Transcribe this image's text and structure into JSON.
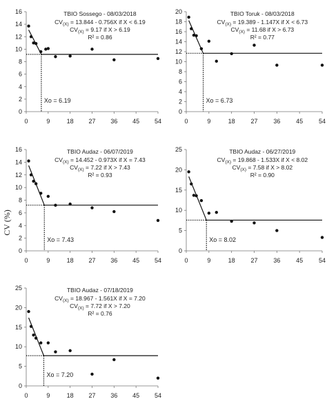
{
  "ylabel": "CV (%)",
  "chart_data": [
    {
      "type": "scatter",
      "title": "TBIO Sossego - 08/03/2018",
      "eq1": "CV(X) = 13.844 - 0.756X if X < 6.19",
      "eq2": "CV(X) = 9.17 if X > 6.19",
      "r2": "R² = 0.86",
      "xo_label": "Xo = 6.19",
      "xo": 6.19,
      "plateau": 9.17,
      "intercept": 13.844,
      "slope": -0.756,
      "ylim": [
        0,
        16
      ],
      "yticks": [
        0,
        2,
        4,
        6,
        8,
        10,
        12,
        14,
        16
      ],
      "xlim": [
        0,
        54
      ],
      "xticks": [
        0,
        9,
        18,
        27,
        36,
        45,
        54
      ],
      "points": [
        [
          1,
          13.7
        ],
        [
          2,
          12.0
        ],
        [
          3,
          11.0
        ],
        [
          4,
          10.9
        ],
        [
          6,
          9.6
        ],
        [
          8,
          10.0
        ],
        [
          9,
          10.1
        ],
        [
          12,
          8.8
        ],
        [
          18,
          8.9
        ],
        [
          27,
          10.0
        ],
        [
          36,
          8.3
        ],
        [
          54,
          8.5
        ]
      ]
    },
    {
      "type": "scatter",
      "title": "TBIO Toruk - 08/03/2018",
      "eq1": "CV(X) = 19.389 - 1.147X if X < 6.73",
      "eq2": "CV(X) = 11.68 if X > 6.73",
      "r2": "R² = 0.77",
      "xo_label": "Xo = 6.73",
      "xo": 6.73,
      "plateau": 11.68,
      "intercept": 19.389,
      "slope": -1.147,
      "ylim": [
        0,
        20
      ],
      "yticks": [
        0,
        2,
        4,
        6,
        8,
        10,
        12,
        14,
        16,
        18,
        20
      ],
      "xlim": [
        0,
        54
      ],
      "xticks": [
        0,
        9,
        18,
        27,
        36,
        45,
        54
      ],
      "points": [
        [
          1,
          18.9
        ],
        [
          2,
          16.6
        ],
        [
          3,
          15.3
        ],
        [
          4,
          15.2
        ],
        [
          6,
          12.6
        ],
        [
          9,
          14.1
        ],
        [
          12,
          10.1
        ],
        [
          18,
          11.6
        ],
        [
          27,
          13.3
        ],
        [
          36,
          9.3
        ],
        [
          54,
          9.3
        ]
      ]
    },
    {
      "type": "scatter",
      "title": "TBIO Audaz - 06/07/2019",
      "eq1": "CV(X) = 14.452 - 0.973X if X = 7.43",
      "eq2": "CV(X) = 7.22 if X > 7.43",
      "r2": "R² = 0.93",
      "xo_label": "Xo = 7.43",
      "xo": 7.43,
      "plateau": 7.22,
      "intercept": 14.452,
      "slope": -0.973,
      "ylim": [
        0,
        16
      ],
      "yticks": [
        0,
        2,
        4,
        6,
        8,
        10,
        12,
        14,
        16
      ],
      "xlim": [
        0,
        54
      ],
      "xticks": [
        0,
        9,
        18,
        27,
        36,
        45,
        54
      ],
      "points": [
        [
          1,
          14.2
        ],
        [
          2,
          12.0
        ],
        [
          3,
          11.0
        ],
        [
          4,
          10.6
        ],
        [
          6,
          9.1
        ],
        [
          9,
          8.6
        ],
        [
          12,
          7.2
        ],
        [
          18,
          7.4
        ],
        [
          27,
          6.8
        ],
        [
          36,
          6.2
        ],
        [
          54,
          4.8
        ]
      ]
    },
    {
      "type": "scatter",
      "title": "TBIO Audaz - 06/27/2019",
      "eq1": "CV(X) = 19.868 - 1.533X if X < 8.02",
      "eq2": "CV(X) = 7.58 if X > 8.02",
      "r2": "R² = 0.90",
      "xo_label": "Xo = 8.02",
      "xo": 8.02,
      "plateau": 7.58,
      "intercept": 19.868,
      "slope": -1.533,
      "ylim": [
        0,
        25
      ],
      "yticks": [
        0,
        5,
        10,
        15,
        20,
        25
      ],
      "xlim": [
        0,
        54
      ],
      "xticks": [
        0,
        9,
        18,
        27,
        36,
        45,
        54
      ],
      "points": [
        [
          1,
          19.5
        ],
        [
          2,
          16.5
        ],
        [
          3,
          13.7
        ],
        [
          4,
          13.6
        ],
        [
          6,
          12.4
        ],
        [
          9,
          9.3
        ],
        [
          12,
          9.5
        ],
        [
          18,
          7.3
        ],
        [
          27,
          6.9
        ],
        [
          36,
          5.0
        ],
        [
          54,
          3.3
        ]
      ]
    },
    {
      "type": "scatter",
      "title": "TBIO Audaz - 07/18/2019",
      "eq1": "CV(X) = 18.967 - 1.561X if X = 7.20",
      "eq2": "CV(X) = 7.72 if X > 7.20",
      "r2": "R² = 0.76",
      "xo_label": "Xo = 7.20",
      "xo": 7.2,
      "plateau": 7.72,
      "intercept": 18.967,
      "slope": -1.561,
      "ylim": [
        0,
        25
      ],
      "yticks": [
        0,
        5,
        10,
        15,
        20,
        25
      ],
      "xlim": [
        0,
        54
      ],
      "xticks": [
        0,
        9,
        18,
        27,
        36,
        45,
        54
      ],
      "points": [
        [
          1,
          19.0
        ],
        [
          2,
          15.2
        ],
        [
          3,
          13.0
        ],
        [
          4,
          12.2
        ],
        [
          6,
          11.0
        ],
        [
          9,
          11.0
        ],
        [
          12,
          8.7
        ],
        [
          18,
          9.0
        ],
        [
          27,
          3.0
        ],
        [
          36,
          6.7
        ],
        [
          54,
          2.0
        ]
      ]
    }
  ]
}
